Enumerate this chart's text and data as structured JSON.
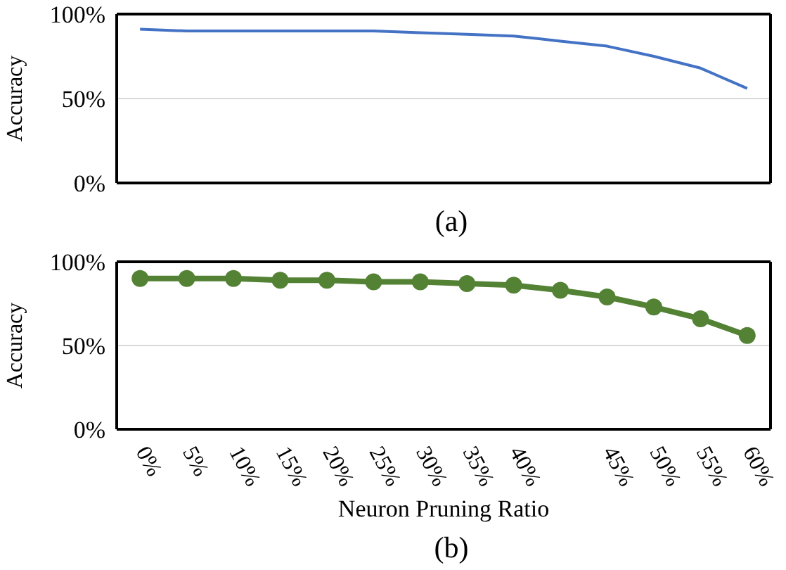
{
  "chart_data": [
    {
      "type": "line",
      "title": "(a)",
      "ylabel": "Accuracy",
      "categories": [
        null,
        null,
        null,
        null,
        null,
        null,
        null,
        null,
        null,
        null,
        null,
        null,
        null,
        null
      ],
      "series": [
        {
          "color": "#4472c4",
          "values": [
            91,
            90,
            90,
            90,
            90,
            90,
            89,
            88,
            87,
            84,
            81,
            75,
            68,
            56
          ]
        }
      ],
      "ylim": [
        0,
        100
      ],
      "yticks": [
        {
          "value": 0,
          "label": "0%"
        },
        {
          "value": 50,
          "label": "50%"
        },
        {
          "value": 100,
          "label": "100%"
        }
      ],
      "grid": "y",
      "marker": "none",
      "tick_labels": "y"
    },
    {
      "type": "line",
      "title": "(b)",
      "xlabel": "Neuron Pruning Ratio",
      "ylabel": "Accuracy",
      "categories": [
        "0%",
        "5%",
        "10%",
        "15%",
        "20%",
        "25%",
        "30%",
        "35%",
        "40%",
        null,
        "45%",
        "50%",
        "55%",
        "60%"
      ],
      "series": [
        {
          "color": "#548235",
          "values": [
            90,
            90,
            90,
            89,
            89,
            88,
            88,
            87,
            86,
            83,
            79,
            73,
            66,
            56
          ]
        }
      ],
      "ylim": [
        0,
        100
      ],
      "yticks": [
        {
          "value": 0,
          "label": "0%"
        },
        {
          "value": 50,
          "label": "50%"
        },
        {
          "value": 100,
          "label": "100%"
        }
      ],
      "grid": "y",
      "marker": "circle"
    }
  ]
}
